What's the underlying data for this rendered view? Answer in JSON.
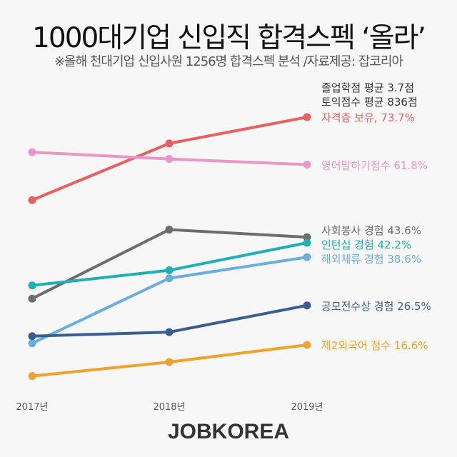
{
  "title": "1000대기업 신입직 합격스펙 ‘올라’",
  "subtitle": "※올해 천대기업 신입사원 1256명 합격스펙 분석 /자료제공: 잡코리아",
  "notes": [
    "졸업학점 평균 3.7점",
    "토익점수 평균 836점"
  ],
  "logo": "JOBKOREA",
  "chart_data": {
    "type": "line",
    "categories": [
      "2017년",
      "2018년",
      "2019년"
    ],
    "ylim": [
      5,
      75
    ],
    "grid": false,
    "legend": "right-end labels",
    "series": [
      {
        "name": "자격증 보유",
        "label": "자격증 보유, 73.7%",
        "color": "#e8605f",
        "values": [
          52.9,
          67.1,
          73.7
        ]
      },
      {
        "name": "영어말하기점수",
        "label": "영어말하기점수 61.8%",
        "color": "#e897c6",
        "values": [
          64.9,
          63.2,
          61.8
        ]
      },
      {
        "name": "사회봉사 경험",
        "label": "사회봉사 경험 43.6%",
        "color": "#6d6d6d",
        "values": [
          28.2,
          45.5,
          43.6
        ]
      },
      {
        "name": "인턴십 경험",
        "label": "인턴십 경험 42.2%",
        "color": "#1fb0b3",
        "values": [
          31.5,
          35.3,
          42.2
        ]
      },
      {
        "name": "해외체류 경험",
        "label": "해외체류 경험 38.6%",
        "color": "#6aaee0",
        "values": [
          17.0,
          33.3,
          38.6
        ]
      },
      {
        "name": "공모전수상 경험",
        "label": "공모전수상 경험 26.5%",
        "color": "#3b5e92",
        "values": [
          18.8,
          19.8,
          26.5
        ]
      },
      {
        "name": "제2외국어 점수",
        "label": "제2외국어 점수 16.6%",
        "color": "#f0a22b",
        "values": [
          8.8,
          12.3,
          16.6
        ]
      }
    ]
  }
}
